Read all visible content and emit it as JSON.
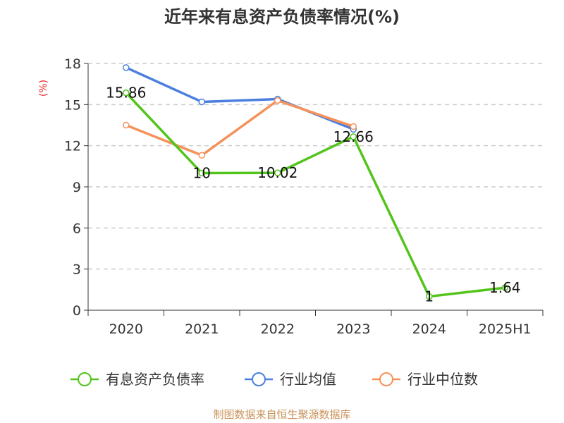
{
  "chart_data": {
    "type": "line",
    "title": "近年来有息资产负债率情况(%)",
    "unit_label": "(%)",
    "categories": [
      "2020",
      "2021",
      "2022",
      "2023",
      "2024",
      "2025H1"
    ],
    "y_ticks": [
      "0",
      "3",
      "6",
      "9",
      "12",
      "15",
      "18"
    ],
    "ylim": [
      0,
      18
    ],
    "grid": "horizontal dashed",
    "legend_position": "bottom",
    "series": [
      {
        "name": "有息资产负债率",
        "color": "#52c41a",
        "values": [
          15.86,
          10,
          10.02,
          12.66,
          1,
          1.64
        ],
        "labels": [
          "15.86",
          "10",
          "10.02",
          "12.66",
          "1",
          "1.64"
        ]
      },
      {
        "name": "行业均值",
        "color": "#4a7fe0",
        "values": [
          17.7,
          15.2,
          15.4,
          13.2,
          null,
          null
        ],
        "labels": []
      },
      {
        "name": "行业中位数",
        "color": "#f5925a",
        "values": [
          13.5,
          11.3,
          15.3,
          13.4,
          null,
          null
        ],
        "labels": []
      }
    ],
    "source": "制图数据来自恒生聚源数据库"
  }
}
